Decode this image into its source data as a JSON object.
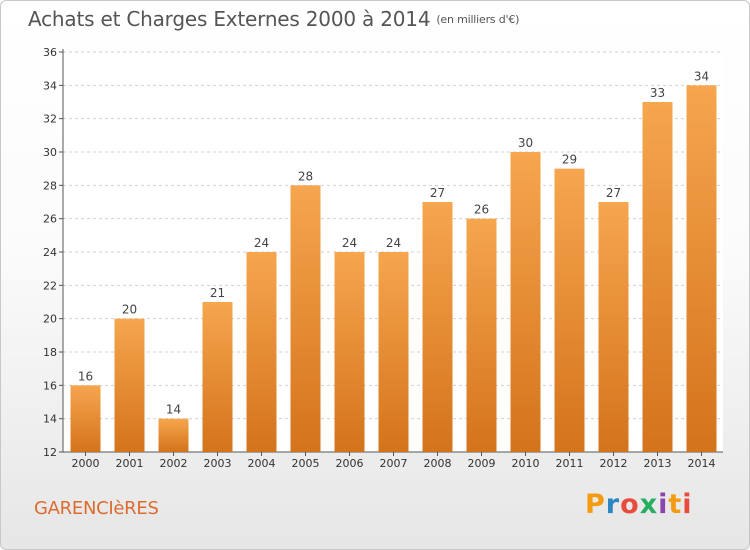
{
  "header": {
    "title": "Achats et Charges Externes 2000 à 2014",
    "subtitle": "(en milliers d'€)"
  },
  "footer": {
    "location": "GARENCIèRES"
  },
  "branding": {
    "logo_text": "Proxiti",
    "logo_colors": [
      "#f39c12",
      "#2e86c1",
      "#e74c3c",
      "#27ae60",
      "#8e44ad",
      "#f39c12",
      "#e74c3c"
    ]
  },
  "colors": {
    "bar_light": "#f6a64e",
    "bar_dark": "#d4731c",
    "title": "#555555",
    "location": "#dd6b2f"
  },
  "chart_data": {
    "type": "bar",
    "title": "Achats et Charges Externes 2000 à 2014",
    "subtitle": "(en milliers d'€)",
    "categories": [
      "2000",
      "2001",
      "2002",
      "2003",
      "2004",
      "2005",
      "2006",
      "2007",
      "2008",
      "2009",
      "2010",
      "2011",
      "2012",
      "2013",
      "2014"
    ],
    "values": [
      16,
      20,
      14,
      21,
      24,
      28,
      24,
      24,
      27,
      26,
      30,
      29,
      27,
      33,
      34
    ],
    "ylim": [
      12,
      36
    ],
    "yticks": [
      12,
      14,
      16,
      18,
      20,
      22,
      24,
      26,
      28,
      30,
      32,
      34,
      36
    ],
    "grid": true,
    "xlabel": "",
    "ylabel": ""
  }
}
